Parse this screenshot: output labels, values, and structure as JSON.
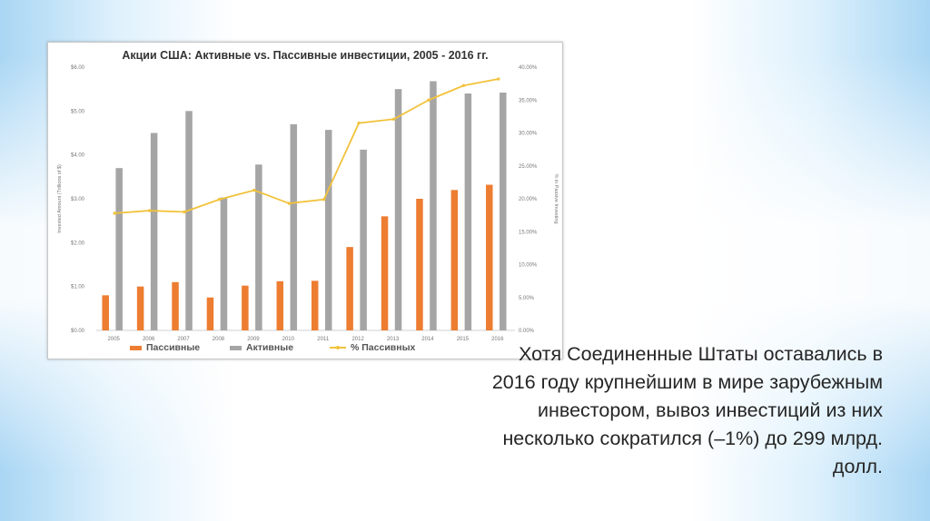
{
  "chart_data": {
    "type": "bar",
    "title": "Акции США: Активные vs. Пассивные инвестиции, 2005 - 2016 гг.",
    "categories": [
      "2005",
      "2006",
      "2007",
      "2008",
      "2009",
      "2010",
      "2011",
      "2012",
      "2013",
      "2014",
      "2015",
      "2016"
    ],
    "ylabel": "Invested Amount (Trillions of $)",
    "ylabel_right": "% in Passive Investing",
    "yticks_left": [
      "$0.00",
      "$1.00",
      "$2.00",
      "$3.00",
      "$4.00",
      "$5.00",
      "$6.00"
    ],
    "yticks_right": [
      "0.00%",
      "5.00%",
      "10.00%",
      "15.00%",
      "20.00%",
      "25.00%",
      "30.00%",
      "35.00%",
      "40.00%"
    ],
    "ylim": [
      0,
      6
    ],
    "ylim_right": [
      0,
      40
    ],
    "series": [
      {
        "name": "Пассивные",
        "type": "bar",
        "axis": "left",
        "color": "#ed7d31",
        "values": [
          0.8,
          1.0,
          1.1,
          0.75,
          1.02,
          1.12,
          1.13,
          1.9,
          2.6,
          3.0,
          3.2,
          3.32
        ]
      },
      {
        "name": "Активные",
        "type": "bar",
        "axis": "left",
        "color": "#a5a5a5",
        "values": [
          3.7,
          4.5,
          5.0,
          3.03,
          3.78,
          4.7,
          4.57,
          4.12,
          5.5,
          5.68,
          5.4,
          5.42
        ]
      },
      {
        "name": "% Пассивных",
        "type": "line",
        "axis": "right",
        "color": "#f2c23a",
        "values": [
          17.8,
          18.2,
          18.0,
          19.9,
          21.3,
          19.3,
          19.9,
          31.5,
          32.1,
          35.0,
          37.2,
          38.2
        ]
      }
    ],
    "legend_position": "bottom",
    "grid": false
  },
  "caption": {
    "lines": [
      "Хотя Соединенные Штаты оставались в",
      "2016 году крупнейшим в мире зарубежным",
      "инвестором, вывоз инвестиций из них",
      "несколько сократился (–1%) до 299 млрд.",
      "долл."
    ]
  }
}
